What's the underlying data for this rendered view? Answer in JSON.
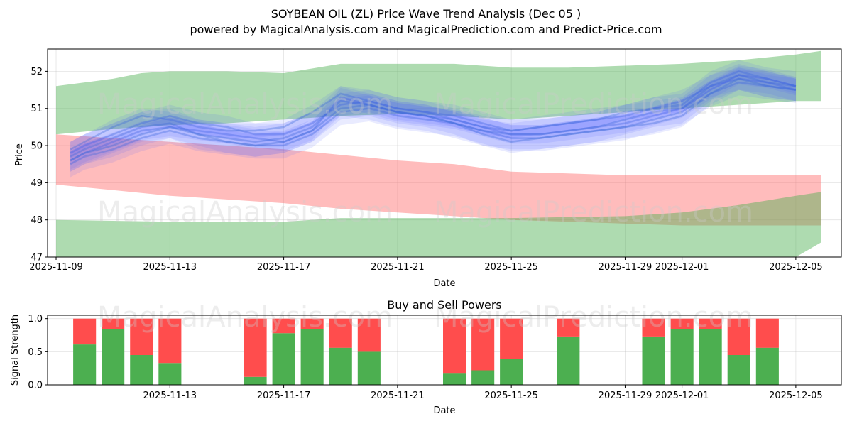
{
  "chart_data": [
    {
      "type": "area",
      "title": "SOYBEAN OIL (ZL) Price Wave Trend Analysis (Dec 05 )",
      "subtitle": "powered by MagicalAnalysis.com and MagicalPrediction.com and Predict-Price.com",
      "xlabel": "Date",
      "ylabel": "Price",
      "ylim": [
        47,
        52.6
      ],
      "xlim": [
        -0.3,
        27.6
      ],
      "x_ticks": [
        {
          "pos": 0,
          "label": "2025-11-09"
        },
        {
          "pos": 4,
          "label": "2025-11-13"
        },
        {
          "pos": 8,
          "label": "2025-11-17"
        },
        {
          "pos": 12,
          "label": "2025-11-21"
        },
        {
          "pos": 16,
          "label": "2025-11-25"
        },
        {
          "pos": 20,
          "label": "2025-11-29"
        },
        {
          "pos": 22,
          "label": "2025-12-01"
        },
        {
          "pos": 26,
          "label": "2025-12-05"
        }
      ],
      "y_ticks": [
        47,
        48,
        49,
        50,
        51,
        52
      ],
      "grid": true,
      "bands": [
        {
          "name": "upper-green-band",
          "color": "#4caf50",
          "x": [
            0,
            2,
            3,
            4,
            6,
            8,
            10,
            12,
            14,
            16,
            18,
            20,
            22,
            24,
            26,
            26.9
          ],
          "upper": [
            51.6,
            51.8,
            51.95,
            52.0,
            52.0,
            51.95,
            52.2,
            52.2,
            52.2,
            52.1,
            52.1,
            52.15,
            52.2,
            52.3,
            52.45,
            52.55
          ],
          "lower": [
            50.3,
            50.45,
            50.5,
            50.55,
            50.6,
            50.7,
            50.8,
            50.85,
            50.8,
            50.7,
            50.8,
            50.9,
            51.0,
            51.1,
            51.2,
            51.2
          ]
        },
        {
          "name": "red-band",
          "color": "#ff6b6b",
          "x": [
            0,
            2,
            4,
            6,
            8,
            10,
            12,
            14,
            16,
            18,
            20,
            22,
            24,
            26,
            26.9
          ],
          "upper": [
            50.3,
            50.2,
            50.1,
            50.0,
            49.9,
            49.75,
            49.6,
            49.5,
            49.3,
            49.25,
            49.2,
            49.2,
            49.2,
            49.2,
            49.2
          ],
          "lower": [
            48.95,
            48.8,
            48.65,
            48.55,
            48.45,
            48.3,
            48.2,
            48.1,
            48.0,
            47.95,
            47.9,
            47.85,
            47.85,
            47.85,
            47.85
          ]
        },
        {
          "name": "lower-green-band",
          "color": "#4caf50",
          "x": [
            0,
            4,
            8,
            10,
            12,
            16,
            20,
            22,
            24,
            26,
            26.9
          ],
          "upper": [
            48.0,
            47.95,
            47.95,
            48.05,
            48.05,
            48.05,
            48.1,
            48.2,
            48.4,
            48.65,
            48.75
          ],
          "lower": [
            47.0,
            47.0,
            47.0,
            47.0,
            47.0,
            47.0,
            47.0,
            47.0,
            47.0,
            47.0,
            47.4
          ]
        }
      ],
      "blue_waves_x": [
        0.5,
        1,
        2,
        3,
        4,
        5,
        6,
        7,
        8,
        9,
        10,
        11,
        12,
        13,
        14,
        15,
        16,
        17,
        18,
        19,
        20,
        21,
        22,
        23,
        24,
        25,
        26
      ],
      "blue_waves": [
        {
          "values": [
            49.6,
            49.8,
            50.1,
            50.4,
            50.5,
            50.4,
            50.3,
            50.2,
            50.1,
            50.4,
            51.3,
            51.1,
            50.9,
            50.8,
            50.7,
            50.5,
            50.3,
            50.3,
            50.4,
            50.5,
            50.6,
            50.8,
            51.0,
            51.5,
            51.9,
            51.8,
            51.6
          ],
          "spread": 0.25
        },
        {
          "values": [
            49.8,
            50.0,
            50.3,
            50.6,
            50.8,
            50.6,
            50.5,
            50.3,
            50.3,
            50.6,
            51.1,
            51.2,
            51.0,
            50.9,
            50.8,
            50.6,
            50.4,
            50.5,
            50.6,
            50.7,
            50.8,
            51.0,
            51.2,
            51.6,
            51.8,
            51.7,
            51.5
          ],
          "spread": 0.3
        },
        {
          "values": [
            49.5,
            49.7,
            49.9,
            50.2,
            50.4,
            50.2,
            50.1,
            50.0,
            50.0,
            50.3,
            50.9,
            51.0,
            50.8,
            50.7,
            50.6,
            50.4,
            50.2,
            50.2,
            50.3,
            50.4,
            50.5,
            50.7,
            50.9,
            51.4,
            51.7,
            51.6,
            51.5
          ],
          "spread": 0.35
        },
        {
          "values": [
            49.9,
            50.1,
            50.5,
            50.8,
            50.7,
            50.5,
            50.4,
            50.4,
            50.5,
            50.9,
            51.4,
            51.2,
            51.0,
            50.9,
            50.7,
            50.5,
            50.4,
            50.5,
            50.6,
            50.7,
            50.9,
            51.0,
            51.1,
            51.7,
            52.0,
            51.8,
            51.6
          ],
          "spread": 0.2
        },
        {
          "values": [
            49.7,
            49.9,
            50.2,
            50.5,
            50.6,
            50.3,
            50.2,
            50.1,
            50.2,
            50.5,
            51.2,
            51.1,
            50.9,
            50.8,
            50.6,
            50.4,
            50.3,
            50.3,
            50.4,
            50.5,
            50.7,
            50.9,
            51.0,
            51.6,
            51.9,
            51.7,
            51.6
          ],
          "spread": 0.4
        },
        {
          "values": [
            49.6,
            49.8,
            50.0,
            50.3,
            50.5,
            50.3,
            50.1,
            50.0,
            50.1,
            50.4,
            51.0,
            51.1,
            50.9,
            50.8,
            50.6,
            50.3,
            50.1,
            50.2,
            50.3,
            50.4,
            50.5,
            50.6,
            50.8,
            51.4,
            51.8,
            51.6,
            51.5
          ],
          "spread": 0.3
        }
      ],
      "watermarks": [
        "MagicalAnalysis.com",
        "MagicalPrediction.com"
      ]
    },
    {
      "type": "bar",
      "title": "Buy and Sell Powers",
      "xlabel": "Date",
      "ylabel": "Signal Strength",
      "ylim": [
        0,
        1.05
      ],
      "xlim": [
        -0.3,
        27.6
      ],
      "x_ticks": [
        {
          "pos": 4,
          "label": "2025-11-13"
        },
        {
          "pos": 8,
          "label": "2025-11-17"
        },
        {
          "pos": 12,
          "label": "2025-11-21"
        },
        {
          "pos": 16,
          "label": "2025-11-25"
        },
        {
          "pos": 20,
          "label": "2025-11-29"
        },
        {
          "pos": 22,
          "label": "2025-12-01"
        },
        {
          "pos": 26,
          "label": "2025-12-05"
        }
      ],
      "y_ticks": [
        "0.0",
        "0.5",
        "1.0"
      ],
      "grid": true,
      "buy_color": "#4caf50",
      "sell_color": "#ff4d4d",
      "bars": [
        {
          "x": 1,
          "buy": 0.61
        },
        {
          "x": 2,
          "buy": 0.84
        },
        {
          "x": 3,
          "buy": 0.45
        },
        {
          "x": 4,
          "buy": 0.33
        },
        {
          "x": 7,
          "buy": 0.12
        },
        {
          "x": 8,
          "buy": 0.78
        },
        {
          "x": 9,
          "buy": 0.84
        },
        {
          "x": 10,
          "buy": 0.56
        },
        {
          "x": 11,
          "buy": 0.5
        },
        {
          "x": 14,
          "buy": 0.17
        },
        {
          "x": 15,
          "buy": 0.22
        },
        {
          "x": 16,
          "buy": 0.39
        },
        {
          "x": 18,
          "buy": 0.73
        },
        {
          "x": 21,
          "buy": 0.73
        },
        {
          "x": 22,
          "buy": 0.84
        },
        {
          "x": 23,
          "buy": 0.84
        },
        {
          "x": 24,
          "buy": 0.45
        },
        {
          "x": 25,
          "buy": 0.56
        }
      ],
      "watermarks": [
        "MagicalAnalysis.com",
        "MagicalPrediction.com"
      ]
    }
  ]
}
